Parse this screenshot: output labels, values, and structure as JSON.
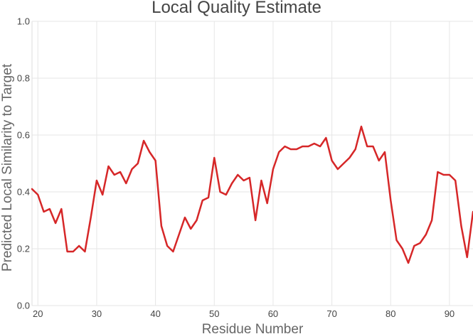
{
  "chart_data": {
    "type": "line",
    "title": "Local Quality Estimate",
    "xlabel": "Residue Number",
    "ylabel": "Predicted Local Similarity to Target",
    "xlim": [
      19,
      94
    ],
    "ylim": [
      0.0,
      1.0
    ],
    "xticks": [
      20,
      30,
      40,
      50,
      60,
      70,
      80,
      90
    ],
    "yticks": [
      "0.0",
      "0.2",
      "0.4",
      "0.6",
      "0.8",
      "1.0"
    ],
    "grid": true,
    "line_color": "#d62728",
    "series": [
      {
        "x": [
          19,
          20,
          21,
          22,
          23,
          24,
          25,
          26,
          27,
          28,
          29,
          30,
          31,
          32,
          33,
          34,
          35,
          36,
          37,
          38,
          39,
          40,
          41,
          42,
          43,
          44,
          45,
          46,
          47,
          48,
          49,
          50,
          51,
          52,
          53,
          54,
          55,
          56,
          57,
          58,
          59,
          60,
          61,
          62,
          63,
          64,
          65,
          66,
          67,
          68,
          69,
          70,
          71,
          72,
          73,
          74,
          75,
          76,
          77,
          78,
          79,
          80,
          81,
          82,
          83,
          84,
          85,
          86,
          87,
          88,
          89,
          90,
          91,
          92,
          93,
          94
        ],
        "values": [
          0.41,
          0.39,
          0.33,
          0.34,
          0.29,
          0.34,
          0.19,
          0.19,
          0.21,
          0.19,
          0.31,
          0.44,
          0.39,
          0.49,
          0.46,
          0.47,
          0.43,
          0.48,
          0.5,
          0.58,
          0.54,
          0.51,
          0.28,
          0.21,
          0.19,
          0.25,
          0.31,
          0.27,
          0.3,
          0.37,
          0.38,
          0.52,
          0.4,
          0.39,
          0.43,
          0.46,
          0.44,
          0.45,
          0.3,
          0.44,
          0.36,
          0.48,
          0.54,
          0.56,
          0.55,
          0.55,
          0.56,
          0.56,
          0.57,
          0.56,
          0.59,
          0.51,
          0.48,
          0.5,
          0.52,
          0.55,
          0.63,
          0.56,
          0.56,
          0.51,
          0.54,
          0.37,
          0.23,
          0.2,
          0.15,
          0.21,
          0.22,
          0.25,
          0.3,
          0.47,
          0.46,
          0.46,
          0.44,
          0.28,
          0.17,
          0.33
        ]
      }
    ]
  }
}
